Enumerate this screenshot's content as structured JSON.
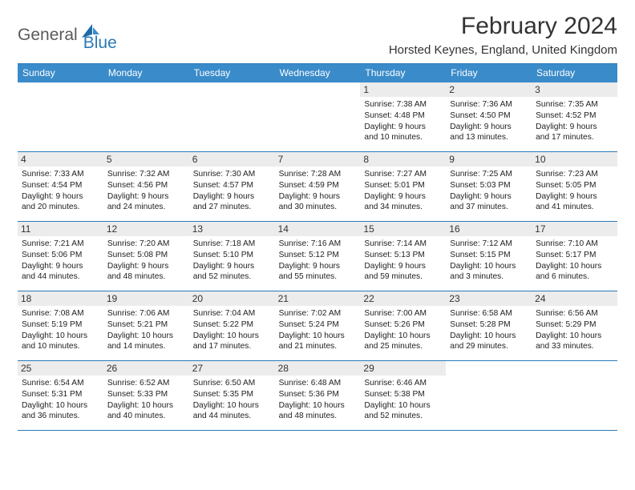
{
  "brand": {
    "part1": "General",
    "part2": "Blue"
  },
  "title": "February 2024",
  "location": "Horsted Keynes, England, United Kingdom",
  "colors": {
    "header_bg": "#3a8bc9",
    "header_border": "#2a7ab8",
    "daynum_bg": "#ececec",
    "text": "#333333",
    "brand_gray": "#5a5a5a",
    "brand_blue": "#2a7ab8"
  },
  "weekdays": [
    "Sunday",
    "Monday",
    "Tuesday",
    "Wednesday",
    "Thursday",
    "Friday",
    "Saturday"
  ],
  "weeks": [
    [
      {
        "n": "",
        "sr": "",
        "ss": "",
        "d1": "",
        "d2": ""
      },
      {
        "n": "",
        "sr": "",
        "ss": "",
        "d1": "",
        "d2": ""
      },
      {
        "n": "",
        "sr": "",
        "ss": "",
        "d1": "",
        "d2": ""
      },
      {
        "n": "",
        "sr": "",
        "ss": "",
        "d1": "",
        "d2": ""
      },
      {
        "n": "1",
        "sr": "Sunrise: 7:38 AM",
        "ss": "Sunset: 4:48 PM",
        "d1": "Daylight: 9 hours",
        "d2": "and 10 minutes."
      },
      {
        "n": "2",
        "sr": "Sunrise: 7:36 AM",
        "ss": "Sunset: 4:50 PM",
        "d1": "Daylight: 9 hours",
        "d2": "and 13 minutes."
      },
      {
        "n": "3",
        "sr": "Sunrise: 7:35 AM",
        "ss": "Sunset: 4:52 PM",
        "d1": "Daylight: 9 hours",
        "d2": "and 17 minutes."
      }
    ],
    [
      {
        "n": "4",
        "sr": "Sunrise: 7:33 AM",
        "ss": "Sunset: 4:54 PM",
        "d1": "Daylight: 9 hours",
        "d2": "and 20 minutes."
      },
      {
        "n": "5",
        "sr": "Sunrise: 7:32 AM",
        "ss": "Sunset: 4:56 PM",
        "d1": "Daylight: 9 hours",
        "d2": "and 24 minutes."
      },
      {
        "n": "6",
        "sr": "Sunrise: 7:30 AM",
        "ss": "Sunset: 4:57 PM",
        "d1": "Daylight: 9 hours",
        "d2": "and 27 minutes."
      },
      {
        "n": "7",
        "sr": "Sunrise: 7:28 AM",
        "ss": "Sunset: 4:59 PM",
        "d1": "Daylight: 9 hours",
        "d2": "and 30 minutes."
      },
      {
        "n": "8",
        "sr": "Sunrise: 7:27 AM",
        "ss": "Sunset: 5:01 PM",
        "d1": "Daylight: 9 hours",
        "d2": "and 34 minutes."
      },
      {
        "n": "9",
        "sr": "Sunrise: 7:25 AM",
        "ss": "Sunset: 5:03 PM",
        "d1": "Daylight: 9 hours",
        "d2": "and 37 minutes."
      },
      {
        "n": "10",
        "sr": "Sunrise: 7:23 AM",
        "ss": "Sunset: 5:05 PM",
        "d1": "Daylight: 9 hours",
        "d2": "and 41 minutes."
      }
    ],
    [
      {
        "n": "11",
        "sr": "Sunrise: 7:21 AM",
        "ss": "Sunset: 5:06 PM",
        "d1": "Daylight: 9 hours",
        "d2": "and 44 minutes."
      },
      {
        "n": "12",
        "sr": "Sunrise: 7:20 AM",
        "ss": "Sunset: 5:08 PM",
        "d1": "Daylight: 9 hours",
        "d2": "and 48 minutes."
      },
      {
        "n": "13",
        "sr": "Sunrise: 7:18 AM",
        "ss": "Sunset: 5:10 PM",
        "d1": "Daylight: 9 hours",
        "d2": "and 52 minutes."
      },
      {
        "n": "14",
        "sr": "Sunrise: 7:16 AM",
        "ss": "Sunset: 5:12 PM",
        "d1": "Daylight: 9 hours",
        "d2": "and 55 minutes."
      },
      {
        "n": "15",
        "sr": "Sunrise: 7:14 AM",
        "ss": "Sunset: 5:13 PM",
        "d1": "Daylight: 9 hours",
        "d2": "and 59 minutes."
      },
      {
        "n": "16",
        "sr": "Sunrise: 7:12 AM",
        "ss": "Sunset: 5:15 PM",
        "d1": "Daylight: 10 hours",
        "d2": "and 3 minutes."
      },
      {
        "n": "17",
        "sr": "Sunrise: 7:10 AM",
        "ss": "Sunset: 5:17 PM",
        "d1": "Daylight: 10 hours",
        "d2": "and 6 minutes."
      }
    ],
    [
      {
        "n": "18",
        "sr": "Sunrise: 7:08 AM",
        "ss": "Sunset: 5:19 PM",
        "d1": "Daylight: 10 hours",
        "d2": "and 10 minutes."
      },
      {
        "n": "19",
        "sr": "Sunrise: 7:06 AM",
        "ss": "Sunset: 5:21 PM",
        "d1": "Daylight: 10 hours",
        "d2": "and 14 minutes."
      },
      {
        "n": "20",
        "sr": "Sunrise: 7:04 AM",
        "ss": "Sunset: 5:22 PM",
        "d1": "Daylight: 10 hours",
        "d2": "and 17 minutes."
      },
      {
        "n": "21",
        "sr": "Sunrise: 7:02 AM",
        "ss": "Sunset: 5:24 PM",
        "d1": "Daylight: 10 hours",
        "d2": "and 21 minutes."
      },
      {
        "n": "22",
        "sr": "Sunrise: 7:00 AM",
        "ss": "Sunset: 5:26 PM",
        "d1": "Daylight: 10 hours",
        "d2": "and 25 minutes."
      },
      {
        "n": "23",
        "sr": "Sunrise: 6:58 AM",
        "ss": "Sunset: 5:28 PM",
        "d1": "Daylight: 10 hours",
        "d2": "and 29 minutes."
      },
      {
        "n": "24",
        "sr": "Sunrise: 6:56 AM",
        "ss": "Sunset: 5:29 PM",
        "d1": "Daylight: 10 hours",
        "d2": "and 33 minutes."
      }
    ],
    [
      {
        "n": "25",
        "sr": "Sunrise: 6:54 AM",
        "ss": "Sunset: 5:31 PM",
        "d1": "Daylight: 10 hours",
        "d2": "and 36 minutes."
      },
      {
        "n": "26",
        "sr": "Sunrise: 6:52 AM",
        "ss": "Sunset: 5:33 PM",
        "d1": "Daylight: 10 hours",
        "d2": "and 40 minutes."
      },
      {
        "n": "27",
        "sr": "Sunrise: 6:50 AM",
        "ss": "Sunset: 5:35 PM",
        "d1": "Daylight: 10 hours",
        "d2": "and 44 minutes."
      },
      {
        "n": "28",
        "sr": "Sunrise: 6:48 AM",
        "ss": "Sunset: 5:36 PM",
        "d1": "Daylight: 10 hours",
        "d2": "and 48 minutes."
      },
      {
        "n": "29",
        "sr": "Sunrise: 6:46 AM",
        "ss": "Sunset: 5:38 PM",
        "d1": "Daylight: 10 hours",
        "d2": "and 52 minutes."
      },
      {
        "n": "",
        "sr": "",
        "ss": "",
        "d1": "",
        "d2": ""
      },
      {
        "n": "",
        "sr": "",
        "ss": "",
        "d1": "",
        "d2": ""
      }
    ]
  ]
}
